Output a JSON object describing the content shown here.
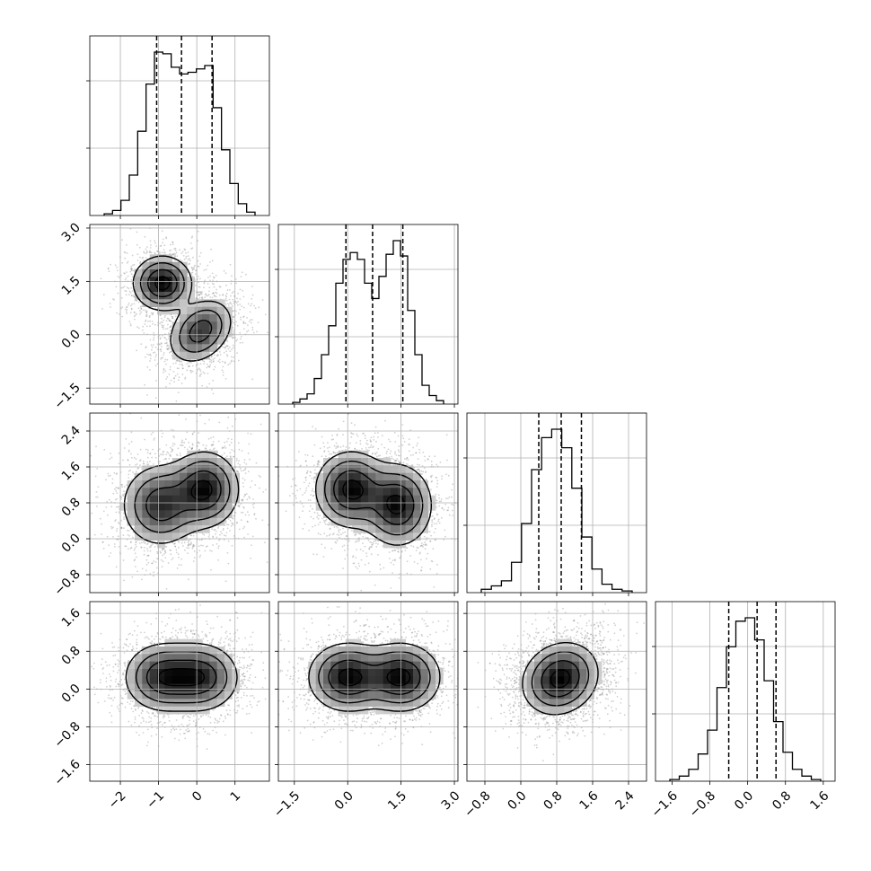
{
  "chart_data": {
    "type": "corner",
    "variables": [
      {
        "ticks": [
          -2,
          -1,
          0,
          1
        ],
        "tick_labels": [
          "−2",
          "−1",
          "0",
          "1"
        ],
        "range": [
          -2.8,
          1.9
        ]
      },
      {
        "ticks": [
          -1.5,
          0.0,
          1.5,
          3.0
        ],
        "tick_labels": [
          "−1.5",
          "0.0",
          "1.5",
          "3.0"
        ],
        "range": [
          -1.95,
          3.1
        ]
      },
      {
        "ticks": [
          -0.8,
          0.0,
          0.8,
          1.6,
          2.4
        ],
        "tick_labels": [
          "−0.8",
          "0.0",
          "0.8",
          "1.6",
          "2.4"
        ],
        "range": [
          -1.2,
          2.8
        ]
      },
      {
        "ticks": [
          -1.6,
          -0.8,
          0.0,
          0.8,
          1.6
        ],
        "tick_labels": [
          "−1.6",
          "−0.8",
          "0.0",
          "0.8",
          "1.6"
        ],
        "range": [
          -1.95,
          1.85
        ]
      }
    ],
    "histograms": [
      {
        "variable": 0,
        "counts": [
          0.01,
          0.03,
          0.09,
          0.24,
          0.5,
          0.78,
          0.97,
          0.96,
          0.88,
          0.84,
          0.85,
          0.87,
          0.89,
          0.64,
          0.39,
          0.19,
          0.07,
          0.02
        ],
        "quantiles": [
          -1.05,
          -0.4,
          0.4
        ]
      },
      {
        "variable": 1,
        "counts": [
          0.01,
          0.03,
          0.06,
          0.15,
          0.29,
          0.46,
          0.71,
          0.85,
          0.89,
          0.85,
          0.71,
          0.62,
          0.75,
          0.88,
          0.96,
          0.87,
          0.55,
          0.29,
          0.11,
          0.05,
          0.02
        ],
        "quantiles": [
          -0.05,
          0.7,
          1.55
        ]
      },
      {
        "variable": 2,
        "counts": [
          0.02,
          0.04,
          0.07,
          0.18,
          0.41,
          0.73,
          0.92,
          0.97,
          0.86,
          0.62,
          0.33,
          0.14,
          0.05,
          0.02,
          0.01
        ],
        "quantiles": [
          0.4,
          0.9,
          1.35
        ]
      },
      {
        "variable": 3,
        "counts": [
          0.01,
          0.03,
          0.07,
          0.16,
          0.3,
          0.55,
          0.79,
          0.94,
          0.96,
          0.83,
          0.59,
          0.35,
          0.17,
          0.07,
          0.03,
          0.01
        ],
        "quantiles": [
          -0.4,
          0.2,
          0.6
        ]
      }
    ],
    "scatter_panels": [
      {
        "x": 0,
        "y": 1,
        "clusters": [
          {
            "cx": -0.9,
            "cy": 1.45,
            "sx": 0.38,
            "sy": 0.38,
            "rho": 0.0,
            "w": 0.5
          },
          {
            "cx": 0.1,
            "cy": 0.1,
            "sx": 0.42,
            "sy": 0.45,
            "rho": 0.3,
            "w": 0.5
          }
        ]
      },
      {
        "x": 0,
        "y": 2,
        "clusters": [
          {
            "cx": -0.95,
            "cy": 0.75,
            "sx": 0.5,
            "sy": 0.45,
            "rho": 0.0,
            "w": 0.5
          },
          {
            "cx": 0.2,
            "cy": 1.1,
            "sx": 0.45,
            "sy": 0.42,
            "rho": 0.0,
            "w": 0.5
          }
        ]
      },
      {
        "x": 0,
        "y": 3,
        "clusters": [
          {
            "cx": -0.9,
            "cy": 0.25,
            "sx": 0.5,
            "sy": 0.36,
            "rho": 0.0,
            "w": 0.5
          },
          {
            "cx": 0.1,
            "cy": 0.25,
            "sx": 0.5,
            "sy": 0.36,
            "rho": 0.0,
            "w": 0.5
          }
        ]
      },
      {
        "x": 1,
        "y": 2,
        "clusters": [
          {
            "cx": 0.1,
            "cy": 1.1,
            "sx": 0.5,
            "sy": 0.42,
            "rho": 0.0,
            "w": 0.5
          },
          {
            "cx": 1.4,
            "cy": 0.75,
            "sx": 0.48,
            "sy": 0.45,
            "rho": 0.0,
            "w": 0.5
          }
        ]
      },
      {
        "x": 1,
        "y": 3,
        "clusters": [
          {
            "cx": 0.0,
            "cy": 0.25,
            "sx": 0.55,
            "sy": 0.36,
            "rho": 0.0,
            "w": 0.5
          },
          {
            "cx": 1.5,
            "cy": 0.25,
            "sx": 0.55,
            "sy": 0.36,
            "rho": 0.0,
            "w": 0.5
          }
        ]
      },
      {
        "x": 2,
        "y": 3,
        "clusters": [
          {
            "cx": 0.88,
            "cy": 0.22,
            "sx": 0.42,
            "sy": 0.38,
            "rho": 0.15,
            "w": 1.0
          }
        ]
      }
    ],
    "contour_levels_sigma": [
      0.5,
      1.0,
      1.5,
      2.0
    ],
    "grid": true,
    "xlabel": "",
    "ylabel": "",
    "title": ""
  }
}
